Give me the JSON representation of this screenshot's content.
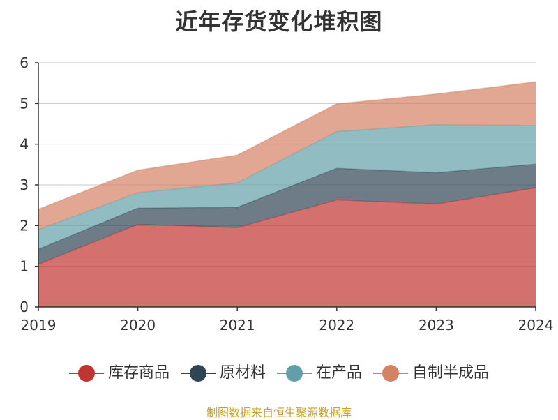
{
  "chart_data": {
    "type": "area",
    "title": "近年存货变化堆积图",
    "stacked": true,
    "categories": [
      "2019",
      "2020",
      "2021",
      "2022",
      "2023",
      "2024"
    ],
    "ylim": [
      0,
      6
    ],
    "yticks": [
      0,
      1,
      2,
      3,
      4,
      5,
      6
    ],
    "grid": true,
    "legend_position": "bottom",
    "series": [
      {
        "name": "库存商品",
        "color": "#c23531",
        "values": [
          1.05,
          2.03,
          1.95,
          2.63,
          2.53,
          2.93
        ]
      },
      {
        "name": "原材料",
        "color": "#2f4554",
        "values": [
          0.37,
          0.4,
          0.5,
          0.78,
          0.77,
          0.58
        ]
      },
      {
        "name": "在产品",
        "color": "#61a0a8",
        "values": [
          0.48,
          0.38,
          0.6,
          0.9,
          1.18,
          0.95
        ]
      },
      {
        "name": "自制半成品",
        "color": "#d48265",
        "values": [
          0.5,
          0.55,
          0.68,
          0.68,
          0.75,
          1.07
        ]
      }
    ]
  },
  "source_text": "制图数据来自恒生聚源数据库"
}
